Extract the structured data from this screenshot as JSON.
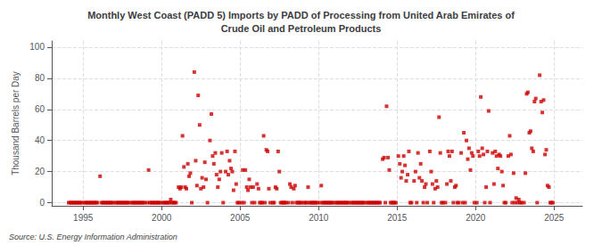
{
  "chart_data": {
    "type": "scatter",
    "title": "Monthly West Coast (PADD 5) Imports by PADD of Processing from United Arab Emirates of\nCrude Oil and Petroleum Products",
    "ylabel": "Thousand Barrels per Day",
    "source": "Source: U.S. Energy Information Administration",
    "color": "#cc0000",
    "marker": "square",
    "grid": true,
    "xlim": [
      1993.0,
      2026.8
    ],
    "ylim": [
      -2,
      104
    ],
    "xticks": [
      1995,
      2000,
      2005,
      2010,
      2015,
      2020,
      2025
    ],
    "yticks": [
      0,
      20,
      40,
      60,
      80,
      100
    ],
    "x": [
      1994.08,
      1994.17,
      1994.25,
      1994.33,
      1994.42,
      1994.5,
      1994.58,
      1994.67,
      1994.75,
      1994.83,
      1994.92,
      1995.08,
      1995.17,
      1995.25,
      1995.33,
      1995.42,
      1995.5,
      1995.58,
      1995.67,
      1995.75,
      1995.83,
      1995.92,
      1996.08,
      1996.17,
      1996.25,
      1996.33,
      1996.42,
      1996.5,
      1996.58,
      1996.67,
      1996.75,
      1996.83,
      1996.92,
      1997.08,
      1997.17,
      1997.25,
      1997.33,
      1997.42,
      1997.5,
      1997.58,
      1997.67,
      1997.75,
      1997.83,
      1997.92,
      1998.08,
      1998.17,
      1998.25,
      1998.33,
      1998.42,
      1998.5,
      1998.58,
      1998.67,
      1998.75,
      1998.83,
      1998.92,
      1999.08,
      1999.17,
      1999.25,
      1999.33,
      1999.42,
      1999.5,
      1999.58,
      1999.67,
      1999.75,
      1999.83,
      1999.92,
      2000.08,
      2000.17,
      2000.25,
      2000.33,
      2000.42,
      2000.5,
      2000.58,
      2000.67,
      2000.75,
      2000.83,
      2000.92,
      2001.08,
      2001.17,
      2001.25,
      2001.33,
      2001.42,
      2001.5,
      2001.58,
      2001.67,
      2001.75,
      2001.83,
      2001.92,
      2002.08,
      2002.17,
      2002.25,
      2002.33,
      2002.42,
      2002.5,
      2002.58,
      2002.67,
      2002.75,
      2002.83,
      2002.92,
      2003.08,
      2003.17,
      2003.25,
      2003.33,
      2003.42,
      2003.5,
      2003.58,
      2003.67,
      2003.75,
      2003.83,
      2003.92,
      2004.08,
      2004.17,
      2004.25,
      2004.33,
      2004.42,
      2004.5,
      2004.58,
      2004.67,
      2004.75,
      2004.83,
      2004.92,
      2005.08,
      2005.17,
      2005.25,
      2005.33,
      2005.42,
      2005.5,
      2005.58,
      2005.67,
      2005.75,
      2005.83,
      2005.92,
      2006.08,
      2006.17,
      2006.25,
      2006.33,
      2006.42,
      2006.5,
      2006.58,
      2006.67,
      2006.75,
      2006.83,
      2006.92,
      2007.08,
      2007.17,
      2007.25,
      2007.33,
      2007.42,
      2007.5,
      2007.58,
      2007.67,
      2007.75,
      2007.83,
      2007.92,
      2008.08,
      2008.17,
      2008.25,
      2008.33,
      2008.42,
      2008.5,
      2008.58,
      2008.67,
      2008.75,
      2008.83,
      2008.92,
      2009.08,
      2009.17,
      2009.25,
      2009.33,
      2009.42,
      2009.5,
      2009.58,
      2009.67,
      2009.75,
      2009.83,
      2009.92,
      2010.08,
      2010.17,
      2010.25,
      2010.33,
      2010.42,
      2010.5,
      2010.58,
      2010.67,
      2010.75,
      2010.83,
      2010.92,
      2011.08,
      2011.17,
      2011.25,
      2011.33,
      2011.42,
      2011.5,
      2011.58,
      2011.67,
      2011.75,
      2011.83,
      2011.92,
      2012.08,
      2012.17,
      2012.25,
      2012.33,
      2012.42,
      2012.5,
      2012.58,
      2012.67,
      2012.75,
      2012.83,
      2012.92,
      2013.08,
      2013.17,
      2013.25,
      2013.33,
      2013.42,
      2013.5,
      2013.58,
      2013.67,
      2013.75,
      2013.83,
      2013.92,
      2014.08,
      2014.17,
      2014.25,
      2014.33,
      2014.42,
      2014.5,
      2014.58,
      2014.67,
      2014.75,
      2014.83,
      2014.92,
      2015.08,
      2015.17,
      2015.25,
      2015.33,
      2015.42,
      2015.5,
      2015.58,
      2015.67,
      2015.75,
      2015.83,
      2015.92,
      2016.08,
      2016.17,
      2016.25,
      2016.33,
      2016.42,
      2016.5,
      2016.58,
      2016.67,
      2016.75,
      2016.83,
      2016.92,
      2017.08,
      2017.17,
      2017.25,
      2017.33,
      2017.42,
      2017.5,
      2017.58,
      2017.67,
      2017.75,
      2017.83,
      2017.92,
      2018.08,
      2018.17,
      2018.25,
      2018.33,
      2018.42,
      2018.5,
      2018.58,
      2018.67,
      2018.75,
      2018.83,
      2018.92,
      2019.08,
      2019.17,
      2019.25,
      2019.33,
      2019.42,
      2019.5,
      2019.58,
      2019.67,
      2019.75,
      2019.83,
      2019.92,
      2020.08,
      2020.17,
      2020.25,
      2020.33,
      2020.42,
      2020.5,
      2020.58,
      2020.67,
      2020.75,
      2020.83,
      2020.92,
      2021.08,
      2021.17,
      2021.25,
      2021.33,
      2021.42,
      2021.5,
      2021.58,
      2021.67,
      2021.75,
      2021.83,
      2021.92,
      2022.08,
      2022.17,
      2022.25,
      2022.33,
      2022.42,
      2022.5,
      2022.58,
      2022.67,
      2022.75,
      2022.83,
      2022.92,
      2023.08,
      2023.17,
      2023.25,
      2023.33,
      2023.42,
      2023.5,
      2023.58,
      2023.67,
      2023.75,
      2023.83,
      2023.92,
      2024.08,
      2024.17,
      2024.25,
      2024.33,
      2024.42,
      2024.5,
      2024.58,
      2024.67,
      2024.75,
      2024.83,
      2024.92
    ],
    "values": [
      0,
      0,
      0,
      0,
      0,
      0,
      0,
      0,
      0,
      0,
      0,
      0,
      0,
      0,
      0,
      0,
      0,
      0,
      0,
      0,
      0,
      0,
      17,
      0,
      0,
      0,
      0,
      0,
      0,
      0,
      0,
      0,
      0,
      0,
      0,
      0,
      0,
      0,
      0,
      0,
      0,
      0,
      0,
      0,
      0,
      0,
      0,
      0,
      0,
      0,
      0,
      0,
      0,
      0,
      0,
      0,
      21,
      0,
      0,
      0,
      0,
      0,
      0,
      0,
      0,
      0,
      0,
      0,
      0,
      0,
      0,
      0,
      2,
      0,
      0,
      0,
      0,
      10,
      9,
      10,
      43,
      23,
      10,
      9,
      25,
      17,
      19,
      0,
      84,
      27,
      11,
      69,
      50,
      9,
      16,
      10,
      26,
      15,
      0,
      40,
      57,
      30,
      25,
      32,
      18,
      10,
      15,
      20,
      32,
      0,
      20,
      33,
      18,
      27,
      22,
      20,
      8,
      33,
      12,
      0,
      0,
      0,
      21,
      0,
      21,
      10,
      8,
      15,
      10,
      0,
      10,
      0,
      12,
      9,
      0,
      0,
      0,
      43,
      0,
      34,
      33,
      9,
      0,
      0,
      0,
      10,
      9,
      33,
      20,
      0,
      0,
      0,
      0,
      0,
      0,
      12,
      10,
      0,
      9,
      11,
      0,
      0,
      0,
      0,
      0,
      0,
      0,
      0,
      10,
      0,
      0,
      0,
      0,
      0,
      0,
      0,
      0,
      11,
      0,
      0,
      0,
      0,
      0,
      0,
      0,
      0,
      0,
      0,
      0,
      0,
      0,
      0,
      0,
      0,
      0,
      0,
      0,
      0,
      0,
      0,
      0,
      0,
      0,
      0,
      0,
      0,
      0,
      0,
      0,
      0,
      0,
      0,
      0,
      0,
      0,
      0,
      0,
      0,
      0,
      0,
      28,
      29,
      0,
      62,
      29,
      21,
      0,
      0,
      0,
      0,
      0,
      30,
      25,
      16,
      20,
      30,
      24,
      14,
      18,
      33,
      0,
      0,
      14,
      20,
      0,
      32,
      16,
      25,
      14,
      0,
      10,
      12,
      0,
      33,
      20,
      12,
      0,
      9,
      14,
      10,
      55,
      32,
      0,
      0,
      0,
      12,
      33,
      30,
      14,
      33,
      0,
      10,
      11,
      0,
      0,
      32,
      0,
      45,
      0,
      40,
      28,
      35,
      21,
      32,
      30,
      0,
      0,
      33,
      30,
      68,
      35,
      31,
      0,
      10,
      33,
      59,
      0,
      32,
      12,
      33,
      30,
      22,
      31,
      30,
      20,
      11,
      0,
      0,
      30,
      43,
      31,
      0,
      19,
      0,
      3,
      0,
      2,
      0,
      0,
      0,
      19,
      70,
      71,
      45,
      46,
      35,
      33,
      65,
      67,
      0,
      82,
      65,
      58,
      66,
      31,
      34,
      11,
      10,
      0,
      0,
      0
    ]
  }
}
